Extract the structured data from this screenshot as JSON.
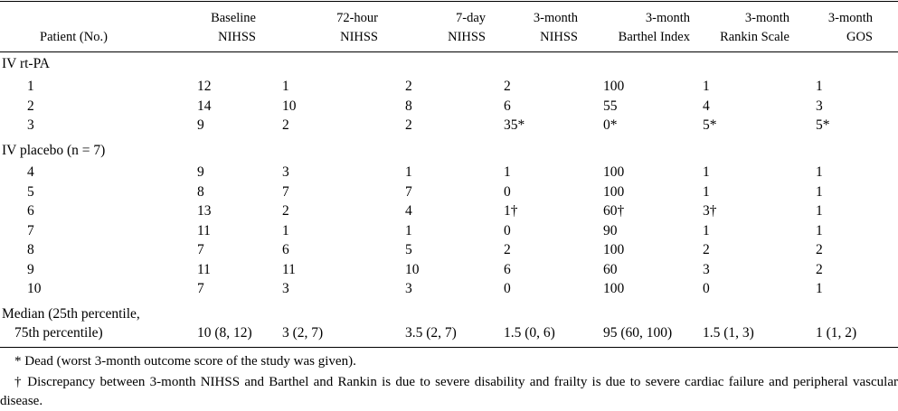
{
  "table": {
    "headers": [
      {
        "l1": "",
        "l2": "Patient (No.)"
      },
      {
        "l1": "Baseline",
        "l2": "NIHSS"
      },
      {
        "l1": "72-hour",
        "l2": "NIHSS"
      },
      {
        "l1": "7-day",
        "l2": "NIHSS"
      },
      {
        "l1": "3-month",
        "l2": "NIHSS"
      },
      {
        "l1": "3-month",
        "l2": "Barthel Index"
      },
      {
        "l1": "3-month",
        "l2": "Rankin Scale"
      },
      {
        "l1": "3-month",
        "l2": "GOS"
      }
    ],
    "group1": {
      "label": "IV rt-PA",
      "rows": [
        [
          "1",
          "12",
          "1",
          "2",
          "2",
          "100",
          "1",
          "1"
        ],
        [
          "2",
          "14",
          "10",
          "8",
          "6",
          "55",
          "4",
          "3"
        ],
        [
          "3",
          "9",
          "2",
          "2",
          "35*",
          "0*",
          "5*",
          "5*"
        ]
      ]
    },
    "group2": {
      "label": "IV placebo (n = 7)",
      "rows": [
        [
          "4",
          "9",
          "3",
          "1",
          "1",
          "100",
          "1",
          "1"
        ],
        [
          "5",
          "8",
          "7",
          "7",
          "0",
          "100",
          "1",
          "1"
        ],
        [
          "6",
          "13",
          "2",
          "4",
          "1†",
          "60†",
          "3†",
          "1"
        ],
        [
          "7",
          "11",
          "1",
          "1",
          "0",
          "90",
          "1",
          "1"
        ],
        [
          "8",
          "7",
          "6",
          "5",
          "2",
          "100",
          "2",
          "2"
        ],
        [
          "9",
          "11",
          "11",
          "10",
          "6",
          "60",
          "3",
          "2"
        ],
        [
          "10",
          "7",
          "3",
          "3",
          "0",
          "100",
          "0",
          "1"
        ]
      ]
    },
    "median": {
      "label_l1": "Median (25th percentile,",
      "label_l2": "75th percentile)",
      "values": [
        "10 (8, 12)",
        "3 (2, 7)",
        "3.5 (2, 7)",
        "1.5 (0, 6)",
        "95 (60, 100)",
        "1.5 (1, 3)",
        "1 (1, 2)"
      ]
    }
  },
  "footnotes": {
    "dead": "* Dead (worst 3-month outcome score of the study was given).",
    "discrepancy": "† Discrepancy between 3-month NIHSS and Barthel and Rankin is due to severe disability and frailty is due to severe cardiac failure and peripheral vascular disease."
  }
}
